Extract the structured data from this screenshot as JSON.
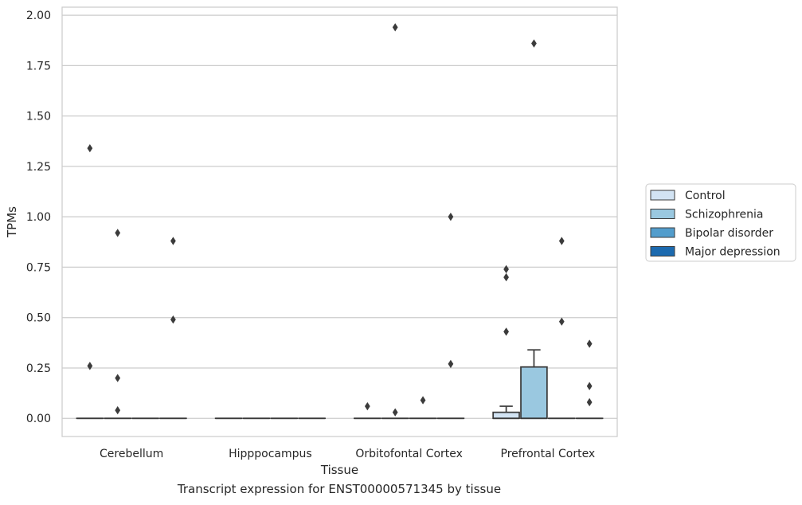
{
  "caption": "Transcript expression for ENST00000571345 by tissue",
  "chart_data": {
    "type": "box",
    "xlabel": "Tissue",
    "ylabel": "TPMs",
    "ylim": [
      -0.09,
      2.04
    ],
    "yticks": [
      "0.00",
      "0.25",
      "0.50",
      "0.75",
      "1.00",
      "1.25",
      "1.50",
      "1.75",
      "2.00"
    ],
    "ytick_values": [
      0,
      0.25,
      0.5,
      0.75,
      1.0,
      1.25,
      1.5,
      1.75,
      2.0
    ],
    "grid": "horizontal",
    "legend_position": "right",
    "categories": [
      "Cerebellum",
      "Hipppocampus",
      "Orbitofontal Cortex",
      "Prefrontal Cortex"
    ],
    "series": [
      {
        "name": "Control",
        "color": "#d2e3f3",
        "boxes": [
          {
            "q1": 0,
            "median": 0,
            "q3": 0,
            "whislo": 0,
            "whishi": 0,
            "fliers": [
              0.26,
              1.34
            ]
          },
          {
            "q1": 0,
            "median": 0,
            "q3": 0,
            "whislo": 0,
            "whishi": 0,
            "fliers": []
          },
          {
            "q1": 0,
            "median": 0,
            "q3": 0,
            "whislo": 0,
            "whishi": 0,
            "fliers": [
              0.06
            ]
          },
          {
            "q1": 0,
            "median": 0,
            "q3": 0.03,
            "whislo": 0,
            "whishi": 0.06,
            "fliers": [
              0.43,
              0.7,
              0.74
            ]
          }
        ]
      },
      {
        "name": "Schizophrenia",
        "color": "#9ac8e0",
        "boxes": [
          {
            "q1": 0,
            "median": 0,
            "q3": 0,
            "whislo": 0,
            "whishi": 0,
            "fliers": [
              0.04,
              0.2,
              0.92
            ]
          },
          {
            "q1": 0,
            "median": 0,
            "q3": 0,
            "whislo": 0,
            "whishi": 0,
            "fliers": []
          },
          {
            "q1": 0,
            "median": 0,
            "q3": 0,
            "whislo": 0,
            "whishi": 0,
            "fliers": [
              0.03,
              1.94
            ]
          },
          {
            "q1": 0,
            "median": 0,
            "q3": 0.255,
            "whislo": 0,
            "whishi": 0.34,
            "fliers": [
              1.86
            ]
          }
        ]
      },
      {
        "name": "Bipolar disorder",
        "color": "#529dcc",
        "boxes": [
          {
            "q1": 0,
            "median": 0,
            "q3": 0,
            "whislo": 0,
            "whishi": 0,
            "fliers": []
          },
          {
            "q1": 0,
            "median": 0,
            "q3": 0,
            "whislo": 0,
            "whishi": 0,
            "fliers": []
          },
          {
            "q1": 0,
            "median": 0,
            "q3": 0,
            "whislo": 0,
            "whishi": 0,
            "fliers": [
              0.09
            ]
          },
          {
            "q1": 0,
            "median": 0,
            "q3": 0,
            "whislo": 0,
            "whishi": 0,
            "fliers": [
              0.48,
              0.88
            ]
          }
        ]
      },
      {
        "name": "Major depression",
        "color": "#1c6aaf",
        "boxes": [
          {
            "q1": 0,
            "median": 0,
            "q3": 0,
            "whislo": 0,
            "whishi": 0,
            "fliers": [
              0.49,
              0.88
            ]
          },
          {
            "q1": 0,
            "median": 0,
            "q3": 0,
            "whislo": 0,
            "whishi": 0,
            "fliers": []
          },
          {
            "q1": 0,
            "median": 0,
            "q3": 0,
            "whislo": 0,
            "whishi": 0,
            "fliers": [
              0.27,
              1.0
            ]
          },
          {
            "q1": 0,
            "median": 0,
            "q3": 0,
            "whislo": 0,
            "whishi": 0,
            "fliers": [
              0.08,
              0.16,
              0.37
            ]
          }
        ]
      }
    ]
  }
}
